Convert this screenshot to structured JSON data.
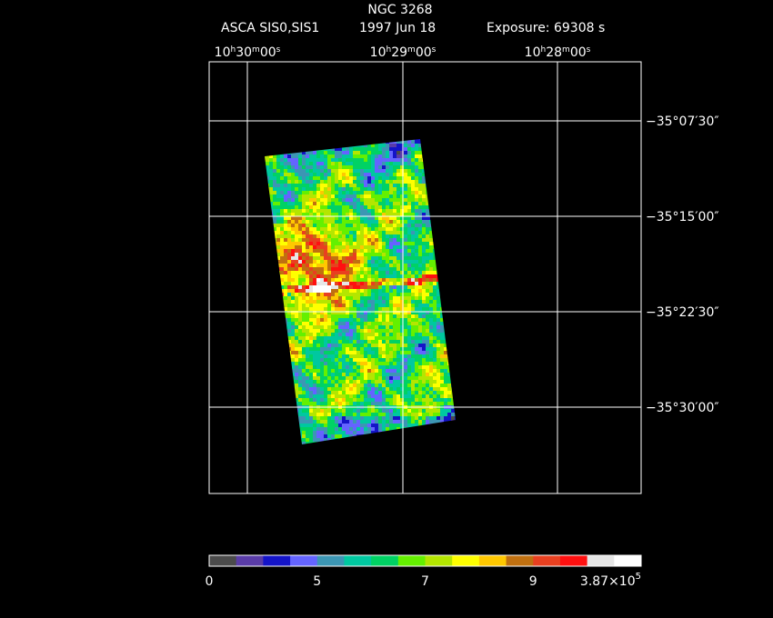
{
  "header": {
    "title": "NGC 3268",
    "instrument": "ASCA SIS0,SIS1",
    "date": "1997 Jun 18",
    "exposure": "Exposure: 69308 s"
  },
  "axes": {
    "ra_labels": [
      [
        "10",
        "h",
        "30",
        "m",
        "00",
        "s"
      ],
      [
        "10",
        "h",
        "29",
        "m",
        "00",
        "s"
      ],
      [
        "10",
        "h",
        "28",
        "m",
        "00",
        "s"
      ]
    ],
    "dec_labels": [
      "−35°07′30″",
      "−35°15′00″",
      "−35°22′30″",
      "−35°30′00″"
    ]
  },
  "colorbar": {
    "colors": [
      "#4b4b4b",
      "#5a3ca8",
      "#1414c8",
      "#6464ff",
      "#3c96b4",
      "#00c8a0",
      "#00d264",
      "#64f000",
      "#b4e600",
      "#ffff00",
      "#ffc800",
      "#c07010",
      "#e84020",
      "#ff1010",
      "#e6e6e6",
      "#ffffff"
    ],
    "labels": [
      "0",
      "5",
      "7",
      "9"
    ],
    "max_label": [
      "3.87×10",
      "5"
    ]
  }
}
